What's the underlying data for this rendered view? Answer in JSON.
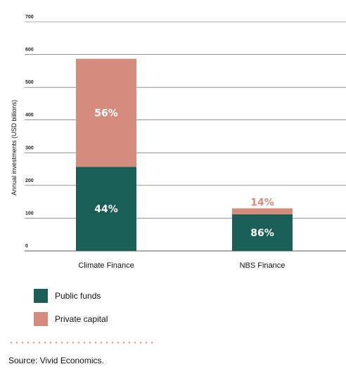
{
  "colors": {
    "public": "#1b5e56",
    "private": "#d48c7e",
    "grid": "#555555",
    "pct_light": "#ffffff"
  },
  "chart_data": {
    "type": "bar",
    "stacked": true,
    "categories": [
      "Climate Finance",
      "NBS Finance"
    ],
    "series": [
      {
        "name": "Public funds",
        "values": [
          257,
          112
        ],
        "labels": [
          "44%",
          "86%"
        ]
      },
      {
        "name": "Private capital",
        "values": [
          330,
          18
        ],
        "labels": [
          "56%",
          "14%"
        ]
      }
    ],
    "ylabel": "Annual investments (USD billions)",
    "ylim": [
      0,
      700
    ],
    "yticks": [
      0,
      100,
      200,
      300,
      400,
      500,
      600,
      700
    ],
    "grid": true,
    "legend_position": "bottom-left"
  },
  "legend": {
    "items": [
      {
        "label": "Public funds",
        "color": "#1b5e56"
      },
      {
        "label": "Private capital",
        "color": "#d48c7e"
      }
    ]
  },
  "source": "Source: Vivid Economics."
}
